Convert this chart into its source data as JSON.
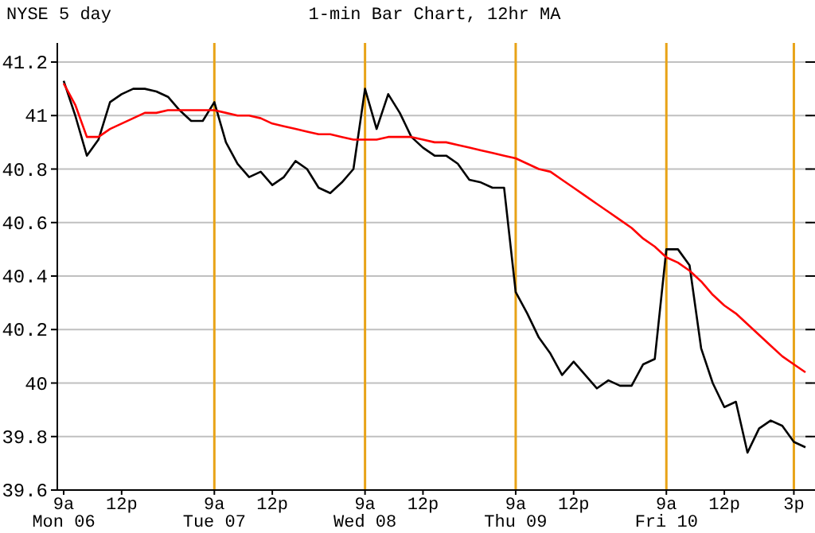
{
  "chart_data": {
    "type": "line",
    "title": "1-min Bar Chart, 12hr MA",
    "subtitle": "NYSE 5 day",
    "categories": [
      "9a\nMon 06",
      null,
      null,
      null,
      null,
      "12p",
      null,
      null,
      null,
      null,
      null,
      null,
      null,
      "9a\nTue 07",
      null,
      null,
      null,
      null,
      "12p",
      null,
      null,
      null,
      null,
      null,
      null,
      null,
      "9a\nWed 08",
      null,
      null,
      null,
      null,
      "12p",
      null,
      null,
      null,
      null,
      null,
      null,
      null,
      "9a\nThu 09",
      null,
      null,
      null,
      null,
      "12p",
      null,
      null,
      null,
      null,
      null,
      null,
      null,
      "9a\nFri 10",
      null,
      null,
      null,
      null,
      "12p",
      null,
      null,
      null,
      null,
      null,
      "3p",
      null
    ],
    "ylim": [
      39.6,
      41.2
    ],
    "yticks": [
      39.6,
      39.8,
      40,
      40.2,
      40.4,
      40.6,
      40.8,
      41,
      41.2
    ],
    "grid": "y",
    "ref_lines": [
      {
        "axis": "x",
        "value": "9a\nTue 07",
        "color": "#e8a317"
      },
      {
        "axis": "x",
        "value": "9a\nWed 08",
        "color": "#e8a317"
      },
      {
        "axis": "x",
        "value": "9a\nThu 09",
        "color": "#e8a317"
      },
      {
        "axis": "x",
        "value": "9a\nFri 10",
        "color": "#e8a317"
      },
      {
        "axis": "x",
        "value": "3p",
        "color": "#e8a317"
      }
    ],
    "series": [
      {
        "color": "#000000",
        "values": [
          41.13,
          41.0,
          40.85,
          40.91,
          41.05,
          41.08,
          41.1,
          41.1,
          41.09,
          41.07,
          41.02,
          40.98,
          40.98,
          41.05,
          40.9,
          40.82,
          40.77,
          40.79,
          40.74,
          40.77,
          40.83,
          40.8,
          40.73,
          40.71,
          40.75,
          40.8,
          41.1,
          40.95,
          41.08,
          41.01,
          40.92,
          40.88,
          40.85,
          40.85,
          40.82,
          40.76,
          40.75,
          40.73,
          40.73,
          40.34,
          40.26,
          40.17,
          40.11,
          40.03,
          40.08,
          40.03,
          39.98,
          40.01,
          39.99,
          39.99,
          40.07,
          40.09,
          40.5,
          40.5,
          40.44,
          40.13,
          40.0,
          39.91,
          39.93,
          39.74,
          39.83,
          39.86,
          39.84,
          39.78,
          39.76
        ]
      },
      {
        "color": "#ff0000",
        "values": [
          41.12,
          41.04,
          40.92,
          40.92,
          40.95,
          40.97,
          40.99,
          41.01,
          41.01,
          41.02,
          41.02,
          41.02,
          41.02,
          41.02,
          41.01,
          41.0,
          41.0,
          40.99,
          40.97,
          40.96,
          40.95,
          40.94,
          40.93,
          40.93,
          40.92,
          40.91,
          40.91,
          40.91,
          40.92,
          40.92,
          40.92,
          40.91,
          40.9,
          40.9,
          40.89,
          40.88,
          40.87,
          40.86,
          40.85,
          40.84,
          40.82,
          40.8,
          40.79,
          40.76,
          40.73,
          40.7,
          40.67,
          40.64,
          40.61,
          40.58,
          40.54,
          40.51,
          40.47,
          40.45,
          40.42,
          40.38,
          40.33,
          40.29,
          40.26,
          40.22,
          40.18,
          40.14,
          40.1,
          40.07,
          40.04
        ]
      }
    ]
  }
}
